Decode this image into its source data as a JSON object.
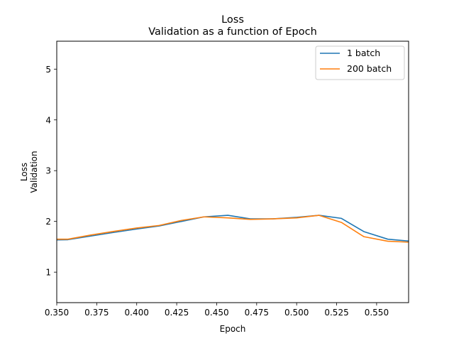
{
  "chart_data": {
    "type": "line",
    "title": "Loss",
    "subtitle": "Validation as a function of Epoch",
    "xlabel": "Epoch",
    "ylabel": "Loss",
    "ylabel2": "Validation",
    "xlim": [
      0.35,
      0.57
    ],
    "ylim": [
      0.4,
      5.55
    ],
    "xticks": [
      "0.350",
      "0.375",
      "0.400",
      "0.425",
      "0.450",
      "0.475",
      "0.500",
      "0.525",
      "0.550"
    ],
    "xtick_values": [
      0.35,
      0.375,
      0.4,
      0.425,
      0.45,
      0.475,
      0.5,
      0.525,
      0.55
    ],
    "yticks": [
      "1",
      "2",
      "3",
      "4",
      "5"
    ],
    "ytick_values": [
      1,
      2,
      3,
      4,
      5
    ],
    "grid": false,
    "legend_position": "top-right",
    "series": [
      {
        "name": "1 batch",
        "color": "#1f77b4",
        "x": [
          0.342,
          0.357,
          0.371,
          0.385,
          0.4,
          0.414,
          0.428,
          0.442,
          0.457,
          0.471,
          0.485,
          0.5,
          0.514,
          0.528,
          0.542,
          0.557,
          0.571
        ],
        "y": [
          1.63,
          1.64,
          1.71,
          1.78,
          1.85,
          1.91,
          2.0,
          2.09,
          2.12,
          2.05,
          2.05,
          2.08,
          2.12,
          2.06,
          1.8,
          1.65,
          1.61
        ]
      },
      {
        "name": "200 batch",
        "color": "#ff7f0e",
        "x": [
          0.342,
          0.357,
          0.371,
          0.385,
          0.4,
          0.414,
          0.428,
          0.442,
          0.457,
          0.471,
          0.485,
          0.5,
          0.514,
          0.528,
          0.542,
          0.557,
          0.571
        ],
        "y": [
          1.65,
          1.65,
          1.73,
          1.8,
          1.87,
          1.92,
          2.02,
          2.09,
          2.07,
          2.04,
          2.05,
          2.07,
          2.12,
          1.98,
          1.7,
          1.61,
          1.59
        ]
      }
    ]
  }
}
